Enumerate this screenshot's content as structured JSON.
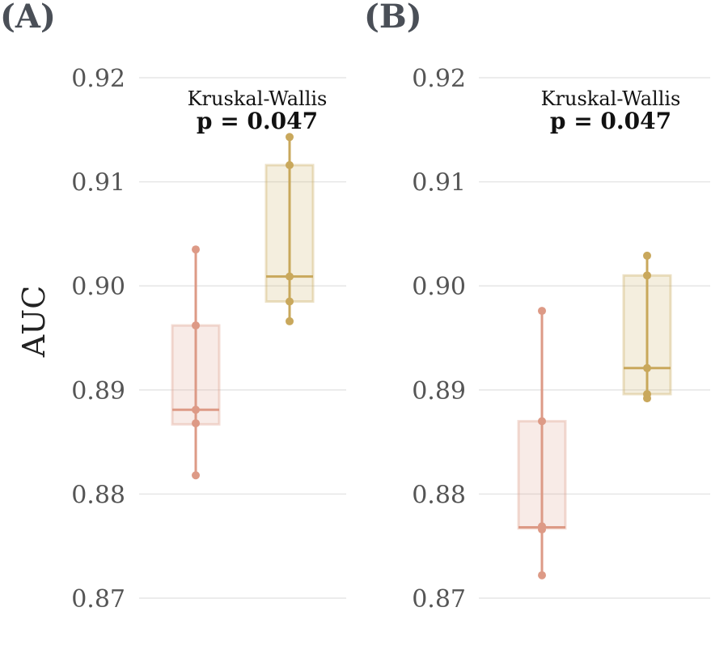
{
  "colors": {
    "group1": "#dd9a86",
    "group2": "#c9a85c"
  },
  "chart_data": [
    {
      "type": "box",
      "panel_label": "(A)",
      "ylabel": "AUC",
      "ylim": [
        0.867,
        0.923
      ],
      "yticks": [
        "0.87",
        "0.88",
        "0.89",
        "0.90",
        "0.91",
        "0.92"
      ],
      "grid": true,
      "annotation": {
        "test": "Kruskal-Wallis",
        "p": "p = 0.047"
      },
      "series": [
        {
          "points": [
            0.9035,
            0.8962,
            0.8881,
            0.8868,
            0.8818
          ],
          "box": {
            "q1": 0.8867,
            "median": 0.8881,
            "q3": 0.8962,
            "min": 0.8818,
            "max": 0.9035
          }
        },
        {
          "points": [
            0.9143,
            0.9116,
            0.9009,
            0.8985,
            0.8966
          ],
          "box": {
            "q1": 0.8985,
            "median": 0.9009,
            "q3": 0.9116,
            "min": 0.8966,
            "max": 0.9143
          }
        }
      ]
    },
    {
      "type": "box",
      "panel_label": "(B)",
      "ylabel": "",
      "ylim": [
        0.867,
        0.923
      ],
      "yticks": [
        "0.87",
        "0.88",
        "0.89",
        "0.90",
        "0.91",
        "0.92"
      ],
      "grid": true,
      "annotation": {
        "test": "Kruskal-Wallis",
        "p": "p = 0.047"
      },
      "series": [
        {
          "points": [
            0.8976,
            0.887,
            0.8769,
            0.8766,
            0.8722
          ],
          "box": {
            "q1": 0.8767,
            "median": 0.8768,
            "q3": 0.887,
            "min": 0.8722,
            "max": 0.8976
          }
        },
        {
          "points": [
            0.9029,
            0.901,
            0.8921,
            0.8896,
            0.8892
          ],
          "box": {
            "q1": 0.8896,
            "median": 0.8921,
            "q3": 0.901,
            "min": 0.8892,
            "max": 0.9029
          }
        }
      ]
    }
  ]
}
